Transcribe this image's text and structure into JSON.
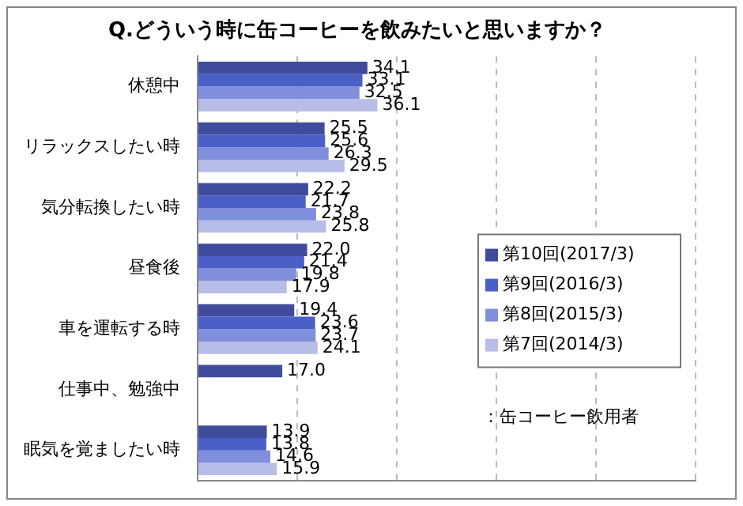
{
  "chart_data": {
    "type": "bar",
    "orientation": "horizontal",
    "title": "Q.どういう時に缶コーヒーを飲みたいと思いますか？",
    "categories": [
      "休憩中",
      "リラックスしたい時",
      "気分転換したい時",
      "昼食後",
      "車を運転する時",
      "仕事中、勉強中",
      "眠気を覚ましたい時"
    ],
    "series": [
      {
        "name": "第10回(2017/3)",
        "color": "#3f4c9c",
        "values": [
          34.1,
          25.5,
          22.2,
          22.0,
          19.4,
          17.0,
          13.9
        ],
        "value_labels": [
          "34.1",
          "25.5",
          "22.2",
          "22.0",
          "19.4",
          "17.0",
          "13.9"
        ]
      },
      {
        "name": "第9回(2016/3)",
        "color": "#4a5fc8",
        "values": [
          33.1,
          25.6,
          21.7,
          21.4,
          23.6,
          null,
          13.8
        ],
        "value_labels": [
          "33.1",
          "25.6",
          "21.7",
          "21.4",
          "23.6",
          null,
          "13.8"
        ]
      },
      {
        "name": "第8回(2015/3)",
        "color": "#7f8fdc",
        "values": [
          32.5,
          26.3,
          23.8,
          19.8,
          23.7,
          null,
          14.6
        ],
        "value_labels": [
          "32.5",
          "26.3",
          "23.8",
          "19.8",
          "23.7",
          null,
          "14.6"
        ]
      },
      {
        "name": "第7回(2014/3)",
        "color": "#b8bde8",
        "values": [
          36.1,
          29.5,
          25.8,
          17.9,
          24.1,
          null,
          15.9
        ],
        "value_labels": [
          "36.1",
          "29.5",
          "25.8",
          "17.9",
          "24.1",
          null,
          "15.9"
        ]
      }
    ],
    "xlim": [
      0,
      100
    ],
    "xticks": [
      {
        "value": 0,
        "label": null
      },
      {
        "value": 20,
        "label": null
      },
      {
        "value": 40,
        "label": null
      },
      {
        "value": 60,
        "label": null
      },
      {
        "value": 80,
        "label": null
      },
      {
        "value": 100,
        "label": null
      }
    ],
    "tick_labels": "y",
    "grid": "x",
    "legend": "right",
    "annotations": [
      "：缶コーヒー飲用者"
    ]
  }
}
